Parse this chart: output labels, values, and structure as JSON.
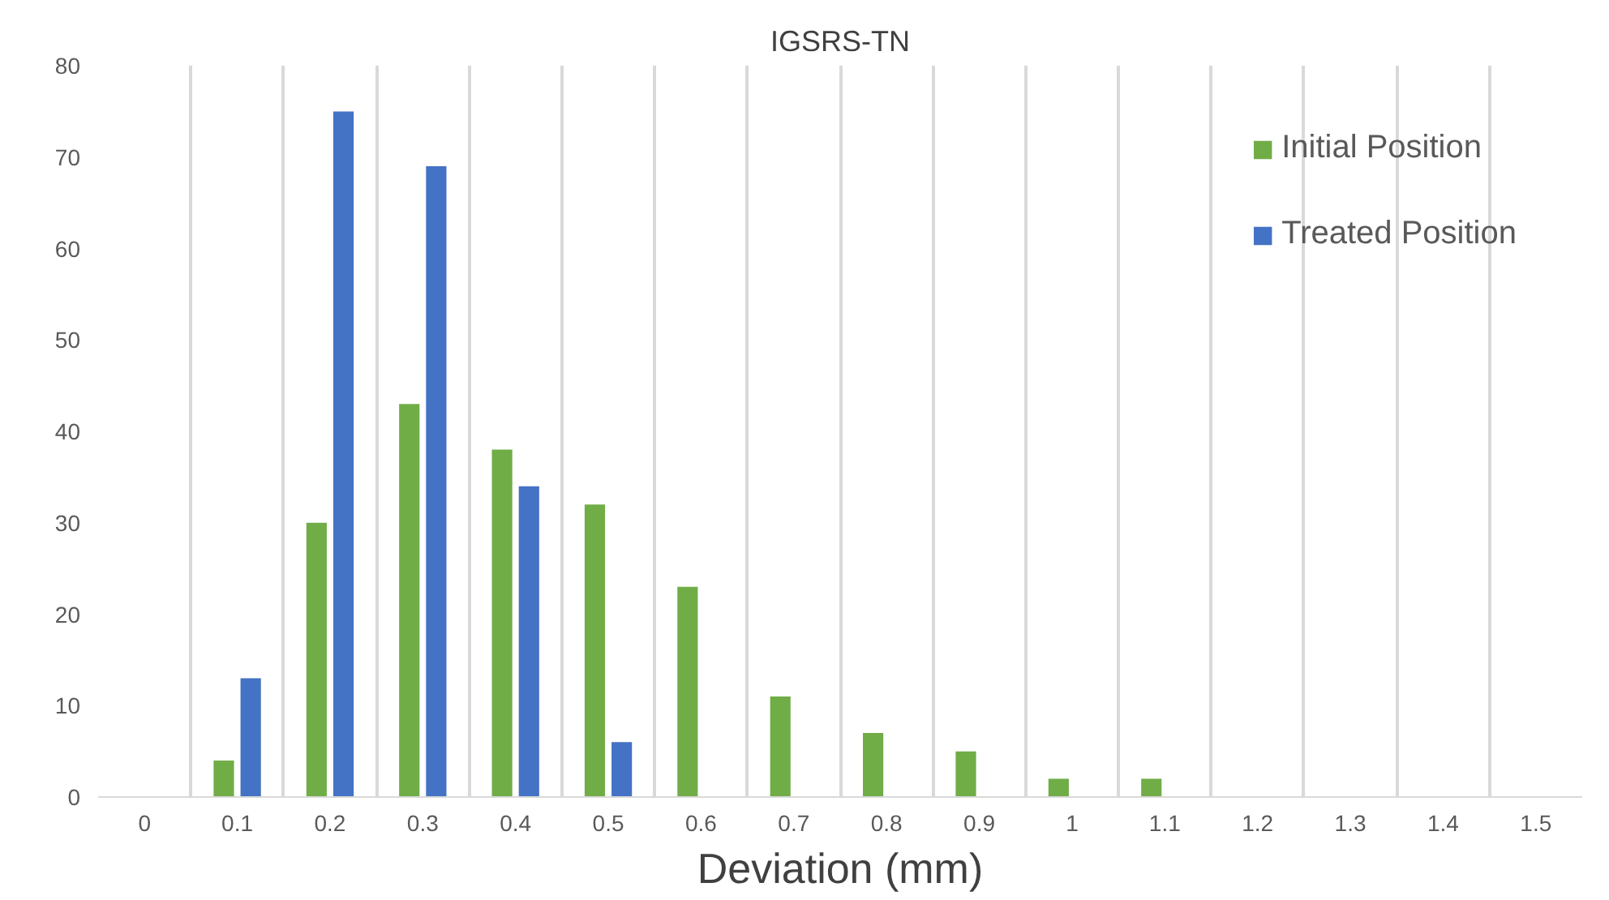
{
  "chart_data": {
    "type": "bar",
    "title": "IGSRS-TN",
    "xlabel": "Deviation (mm)",
    "categories": [
      "0",
      "0.1",
      "0.2",
      "0.3",
      "0.4",
      "0.5",
      "0.6",
      "0.7",
      "0.8",
      "0.9",
      "1",
      "1.1",
      "1.2",
      "1.3",
      "1.4",
      "1.5"
    ],
    "series": [
      {
        "name": "Initial Position",
        "color": "#70ad47",
        "values": [
          0,
          4,
          30,
          43,
          38,
          32,
          23,
          11,
          7,
          5,
          2,
          2,
          0,
          0,
          0,
          0
        ]
      },
      {
        "name": "Treated Position",
        "color": "#4472c4",
        "values": [
          0,
          13,
          75,
          69,
          34,
          6,
          0,
          0,
          0,
          0,
          0,
          0,
          0,
          0,
          0,
          0
        ]
      }
    ],
    "ylim": [
      0,
      80
    ],
    "yticks": [
      0,
      10,
      20,
      30,
      40,
      50,
      60,
      70,
      80
    ],
    "grid": "x",
    "legend": "right"
  }
}
